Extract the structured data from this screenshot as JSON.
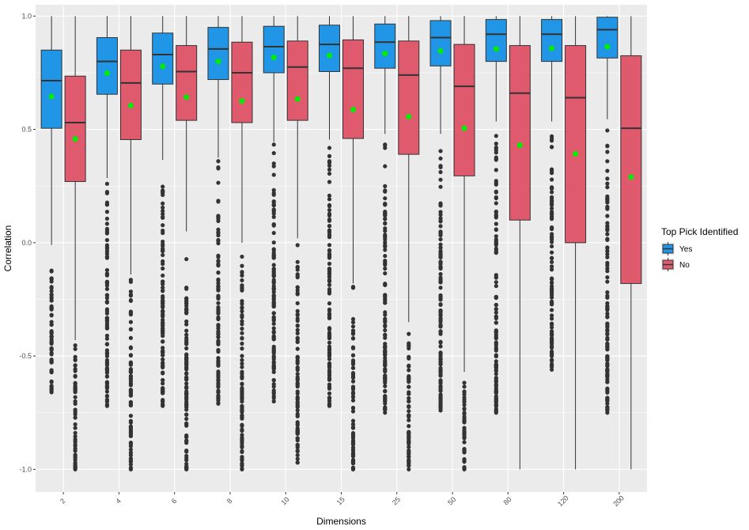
{
  "chart_data": {
    "type": "boxplot",
    "xlabel": "Dimensions",
    "ylabel": "Correlation",
    "ylim": [
      -1.1,
      1.05
    ],
    "y_ticks": [
      -1.0,
      -0.5,
      0.0,
      0.5,
      1.0
    ],
    "y_tick_labels": [
      "-1.0",
      "-0.5",
      "0.0",
      "0.5",
      "1.0"
    ],
    "categories": [
      "2",
      "4",
      "6",
      "8",
      "10",
      "15",
      "25",
      "50",
      "80",
      "120",
      "200"
    ],
    "grid": true,
    "legend": {
      "title": "Top Pick Identified",
      "position": "right",
      "entries": [
        "Yes",
        "No"
      ]
    },
    "colors": {
      "panel": "#ebebeb",
      "grid_major": "#ffffff",
      "box_line": "#333333",
      "mean_point": "#00ee00",
      "Yes": "#2196e6",
      "No": "#e05a6e"
    },
    "series": [
      {
        "name": "Yes",
        "boxes": [
          {
            "min": -0.66,
            "q1": 0.505,
            "median": 0.715,
            "q3": 0.85,
            "max": 1.0,
            "mean": 0.645,
            "whisker_low": -0.01
          },
          {
            "min": -0.72,
            "q1": 0.655,
            "median": 0.8,
            "q3": 0.905,
            "max": 1.0,
            "mean": 0.748,
            "whisker_low": 0.285
          },
          {
            "min": -0.72,
            "q1": 0.7,
            "median": 0.83,
            "q3": 0.925,
            "max": 1.0,
            "mean": 0.778,
            "whisker_low": 0.365
          },
          {
            "min": -0.71,
            "q1": 0.72,
            "median": 0.855,
            "q3": 0.95,
            "max": 1.0,
            "mean": 0.8,
            "whisker_low": 0.375
          },
          {
            "min": -0.7,
            "q1": 0.75,
            "median": 0.865,
            "q3": 0.955,
            "max": 1.0,
            "mean": 0.818,
            "whisker_low": 0.445
          },
          {
            "min": -0.72,
            "q1": 0.755,
            "median": 0.875,
            "q3": 0.96,
            "max": 1.0,
            "mean": 0.826,
            "whisker_low": 0.455
          },
          {
            "min": -0.75,
            "q1": 0.77,
            "median": 0.885,
            "q3": 0.965,
            "max": 1.0,
            "mean": 0.835,
            "whisker_low": 0.48
          },
          {
            "min": -0.74,
            "q1": 0.78,
            "median": 0.905,
            "q3": 0.98,
            "max": 1.0,
            "mean": 0.846,
            "whisker_low": 0.48
          },
          {
            "min": -0.75,
            "q1": 0.8,
            "median": 0.92,
            "q3": 0.985,
            "max": 1.0,
            "mean": 0.855,
            "whisker_low": 0.535
          },
          {
            "min": -0.56,
            "q1": 0.8,
            "median": 0.92,
            "q3": 0.985,
            "max": 1.0,
            "mean": 0.858,
            "whisker_low": 0.535
          },
          {
            "min": -0.75,
            "q1": 0.815,
            "median": 0.94,
            "q3": 0.995,
            "max": 1.0,
            "mean": 0.865,
            "whisker_low": 0.545
          }
        ]
      },
      {
        "name": "No",
        "boxes": [
          {
            "min": -1.0,
            "q1": 0.27,
            "median": 0.53,
            "q3": 0.735,
            "max": 1.0,
            "mean": 0.458,
            "whisker_low": -0.43
          },
          {
            "min": -1.0,
            "q1": 0.455,
            "median": 0.705,
            "q3": 0.85,
            "max": 1.0,
            "mean": 0.605,
            "whisker_low": -0.14
          },
          {
            "min": -1.0,
            "q1": 0.54,
            "median": 0.755,
            "q3": 0.87,
            "max": 1.0,
            "mean": 0.642,
            "whisker_low": 0.05
          },
          {
            "min": -1.0,
            "q1": 0.53,
            "median": 0.75,
            "q3": 0.885,
            "max": 1.0,
            "mean": 0.625,
            "whisker_low": 0.0
          },
          {
            "min": -0.97,
            "q1": 0.54,
            "median": 0.775,
            "q3": 0.89,
            "max": 1.0,
            "mean": 0.634,
            "whisker_low": 0.02
          },
          {
            "min": -1.0,
            "q1": 0.46,
            "median": 0.77,
            "q3": 0.895,
            "max": 1.0,
            "mean": 0.587,
            "whisker_low": -0.18
          },
          {
            "min": -1.0,
            "q1": 0.39,
            "median": 0.74,
            "q3": 0.89,
            "max": 1.0,
            "mean": 0.556,
            "whisker_low": -0.35
          },
          {
            "min": -1.0,
            "q1": 0.295,
            "median": 0.69,
            "q3": 0.875,
            "max": 1.0,
            "mean": 0.505,
            "whisker_low": -0.57
          },
          {
            "min": -1.0,
            "q1": 0.1,
            "median": 0.66,
            "q3": 0.87,
            "max": 1.0,
            "mean": 0.43,
            "whisker_low": -1.0
          },
          {
            "min": -1.0,
            "q1": 0.0,
            "median": 0.64,
            "q3": 0.87,
            "max": 1.0,
            "mean": 0.392,
            "whisker_low": -1.0
          },
          {
            "min": -1.0,
            "q1": -0.18,
            "median": 0.505,
            "q3": 0.825,
            "max": 1.0,
            "mean": 0.29,
            "whisker_low": -1.0
          }
        ]
      }
    ]
  }
}
